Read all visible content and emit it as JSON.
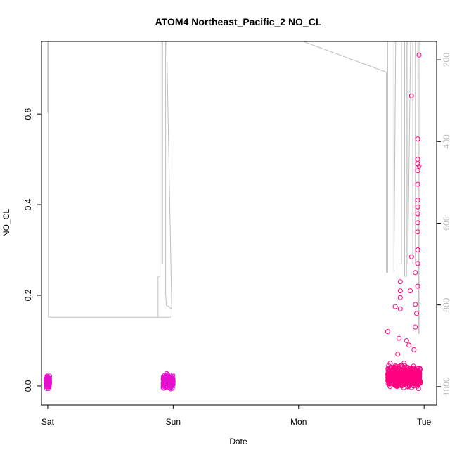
{
  "chart_data": {
    "type": "scatter",
    "title": "ATOM4 Northeast_Pacific_2 NO_CL",
    "xlabel": "Date",
    "ylabel": "NO_CL",
    "x_ticks": [
      "Sat",
      "Sun",
      "Mon",
      "Tue"
    ],
    "x_range_days": [
      -0.05,
      3.1
    ],
    "ylim": [
      -0.042,
      0.76
    ],
    "y_ticks": [
      0.0,
      0.2,
      0.4,
      0.6
    ],
    "y_tick_labels": [
      "0.0",
      "0.2",
      "0.4",
      "0.6"
    ],
    "y2_label": "",
    "y2_ticks": [
      200,
      400,
      600,
      800,
      1000
    ],
    "y2_tick_labels": [
      "200",
      "400",
      "600",
      "800",
      "1000"
    ],
    "y2_range": [
      1045,
      155
    ],
    "y2_inverted": true,
    "grid": false,
    "legend": "none",
    "colors": {
      "points_low_altitude": "#ff0080",
      "points_high_altitude": "#e60fcf",
      "pressure_line": "#bebebe",
      "axes": "#000000"
    },
    "series": [
      {
        "role": "points",
        "clusters": [
          {
            "x_center_day": 0.0,
            "x_spread_day": 0.015,
            "y_mean": 0.008,
            "y_spread": 0.012,
            "count": 90,
            "color": "points_high_altitude"
          },
          {
            "x_center_day": 0.96,
            "x_spread_day": 0.04,
            "y_mean": 0.01,
            "y_spread": 0.013,
            "count": 220,
            "color": "points_high_altitude"
          },
          {
            "x_center_day": 2.84,
            "x_spread_day": 0.13,
            "y_mean": 0.02,
            "y_spread": 0.02,
            "count": 600,
            "color": "points_low_altitude"
          }
        ],
        "outliers": [
          {
            "x": 2.71,
            "y": 0.12
          },
          {
            "x": 2.73,
            "y": 0.05
          },
          {
            "x": 2.77,
            "y": 0.175
          },
          {
            "x": 2.79,
            "y": 0.07
          },
          {
            "x": 2.8,
            "y": 0.105
          },
          {
            "x": 2.81,
            "y": 0.23
          },
          {
            "x": 2.81,
            "y": 0.21
          },
          {
            "x": 2.81,
            "y": 0.195
          },
          {
            "x": 2.81,
            "y": 0.17
          },
          {
            "x": 2.84,
            "y": 0.05
          },
          {
            "x": 2.86,
            "y": 0.1
          },
          {
            "x": 2.88,
            "y": 0.09
          },
          {
            "x": 2.89,
            "y": 0.21
          },
          {
            "x": 2.9,
            "y": 0.64
          },
          {
            "x": 2.9,
            "y": 0.285
          },
          {
            "x": 2.93,
            "y": 0.25
          },
          {
            "x": 2.93,
            "y": 0.18
          },
          {
            "x": 2.95,
            "y": 0.49
          },
          {
            "x": 2.95,
            "y": 0.475
          },
          {
            "x": 2.95,
            "y": 0.445
          },
          {
            "x": 2.95,
            "y": 0.41
          },
          {
            "x": 2.95,
            "y": 0.395
          },
          {
            "x": 2.95,
            "y": 0.38
          },
          {
            "x": 2.96,
            "y": 0.73
          },
          {
            "x": 2.95,
            "y": 0.545
          },
          {
            "x": 2.95,
            "y": 0.5
          },
          {
            "x": 2.95,
            "y": 0.36
          },
          {
            "x": 2.95,
            "y": 0.34
          },
          {
            "x": 2.95,
            "y": 0.3
          },
          {
            "x": 2.95,
            "y": 0.27
          },
          {
            "x": 2.95,
            "y": 0.22
          },
          {
            "x": 2.94,
            "y": 0.16
          },
          {
            "x": 2.93,
            "y": 0.13
          },
          {
            "x": 2.92,
            "y": 0.08
          },
          {
            "x": 2.96,
            "y": 0.485
          }
        ]
      },
      {
        "role": "pressure",
        "axis": "right",
        "points": [
          [
            -0.05,
            100
          ],
          [
            0.0,
            100
          ],
          [
            0.0,
            330
          ],
          [
            0.005,
            100
          ],
          [
            0.005,
            830
          ],
          [
            0.98,
            830
          ],
          [
            0.88,
            830
          ],
          [
            0.88,
            730
          ],
          [
            0.895,
            730
          ],
          [
            0.895,
            100
          ],
          [
            0.91,
            100
          ],
          [
            0.91,
            700
          ],
          [
            0.915,
            700
          ],
          [
            0.915,
            100
          ],
          [
            0.94,
            100
          ],
          [
            0.94,
            770
          ],
          [
            0.945,
            800
          ],
          [
            0.99,
            810
          ],
          [
            0.99,
            830
          ],
          [
            0.945,
            100
          ],
          [
            0.94,
            100
          ],
          [
            1.0,
            100
          ],
          [
            1.55,
            100
          ],
          [
            2.7,
            230
          ],
          [
            2.7,
            720
          ],
          [
            2.71,
            720
          ],
          [
            2.71,
            100
          ],
          [
            2.76,
            100
          ],
          [
            2.76,
            720
          ],
          [
            2.775,
            100
          ],
          [
            2.8,
            100
          ],
          [
            2.8,
            700
          ],
          [
            2.82,
            700
          ],
          [
            2.82,
            100
          ],
          [
            2.845,
            100
          ],
          [
            2.845,
            730
          ],
          [
            2.86,
            730
          ],
          [
            2.86,
            100
          ],
          [
            2.87,
            100
          ],
          [
            2.87,
            700
          ],
          [
            2.895,
            100
          ],
          [
            2.91,
            100
          ],
          [
            2.91,
            700
          ],
          [
            2.93,
            700
          ],
          [
            2.93,
            100
          ],
          [
            2.95,
            100
          ],
          [
            2.955,
            870
          ],
          [
            2.96,
            870
          ],
          [
            2.96,
            100
          ],
          [
            2.97,
            100
          ]
        ]
      }
    ]
  }
}
